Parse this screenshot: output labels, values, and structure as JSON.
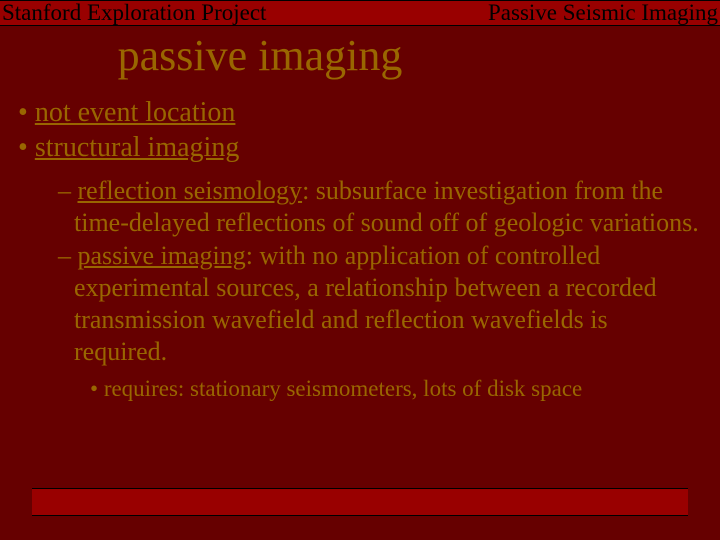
{
  "colors": {
    "background": "#660000",
    "bar_background": "#990000",
    "bar_border": "#000000",
    "body_text": "#996600",
    "header_text": "#000000"
  },
  "typography": {
    "font_family": "Times New Roman",
    "header_fontsize_pt": 17,
    "title_fontsize_pt": 33,
    "level1_fontsize_pt": 21,
    "level2_fontsize_pt": 20,
    "level3_fontsize_pt": 17
  },
  "header": {
    "left": "Stanford Exploration Project",
    "right": "Passive Seismic Imaging"
  },
  "title": "passive imaging",
  "bullets": {
    "level1": [
      {
        "term": "not event location"
      },
      {
        "term": "structural imaging"
      }
    ],
    "level2": [
      {
        "underlined": "reflection seismology",
        "rest": ": subsurface investigation from the time-delayed reflections of sound off of geologic variations."
      },
      {
        "underlined": "passive imaging",
        "rest": ": with no application of controlled experimental sources, a relationship between a recorded transmission wavefield and reflection wavefields is required."
      }
    ],
    "level3": [
      {
        "text": "requires: stationary seismometers, lots of disk space"
      }
    ]
  }
}
